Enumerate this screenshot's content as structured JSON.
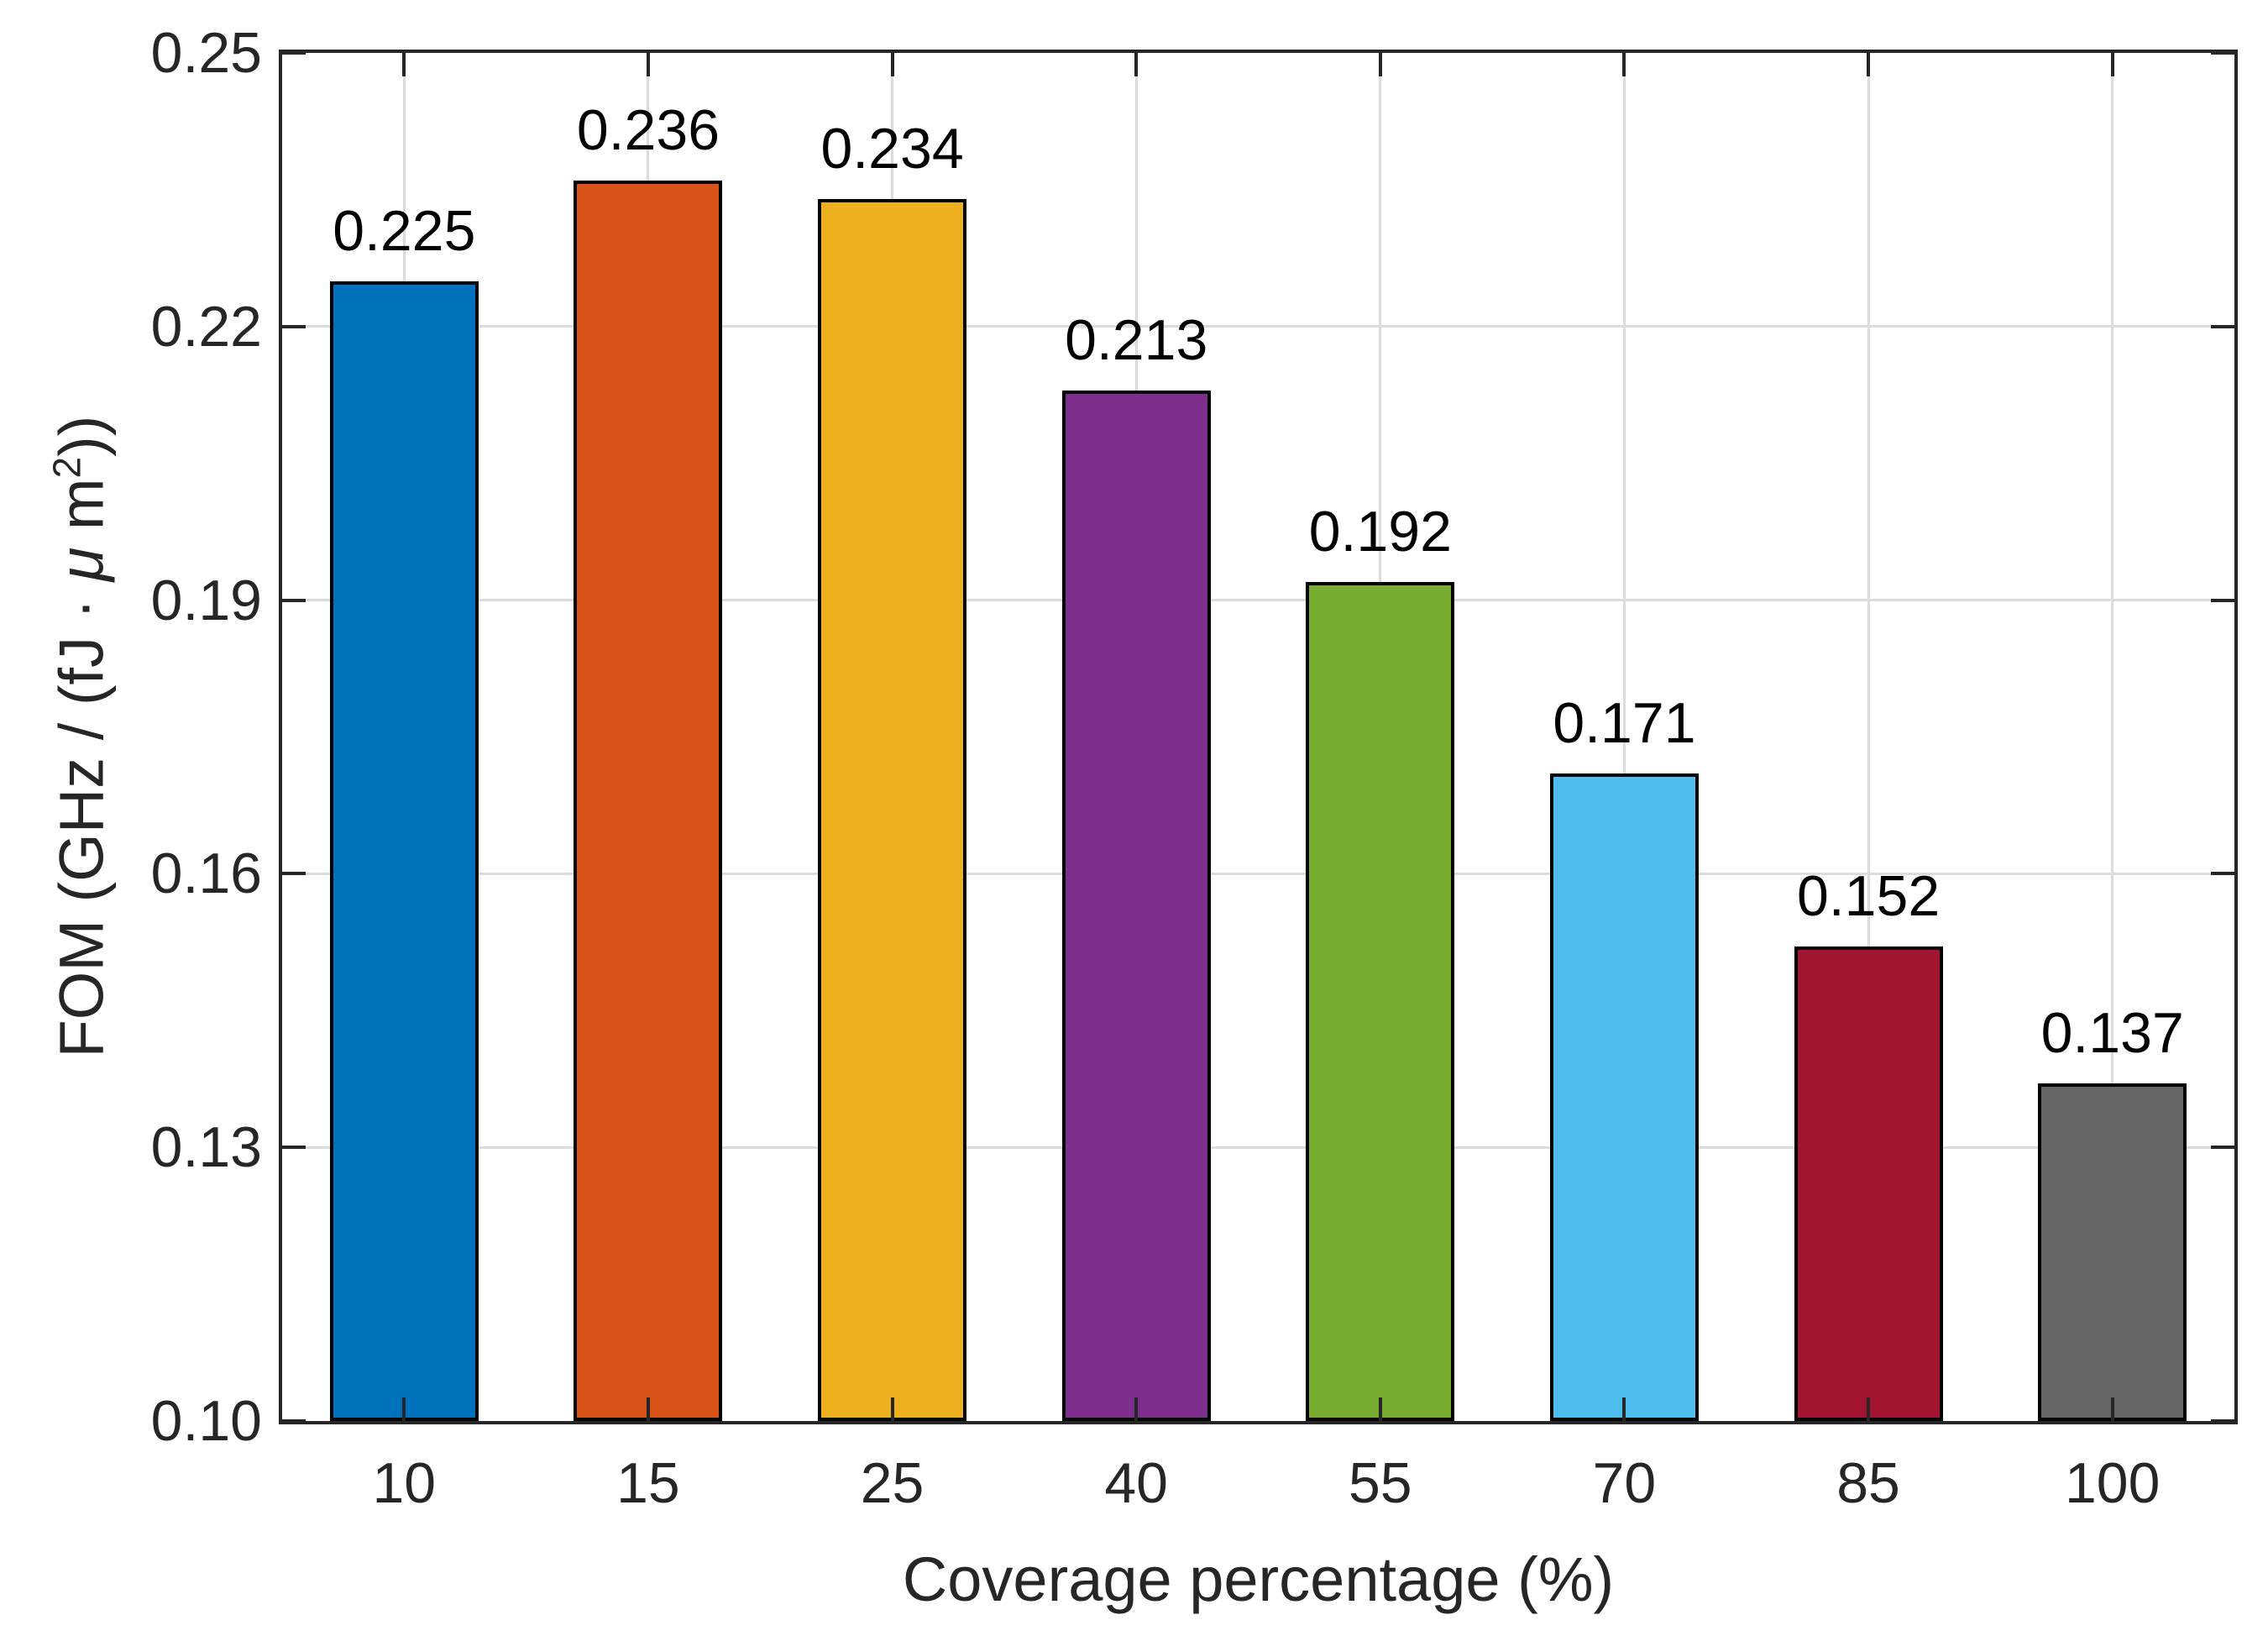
{
  "figure": {
    "background": "#FFFFFF"
  },
  "chart_data": {
    "type": "bar",
    "title": "",
    "xlabel": "Coverage percentage (%)",
    "ylabel": "FOM (GHz / (fJ · μ m²))",
    "ylabel_parts": {
      "pre": "FOM (GHz / (fJ · ",
      "mu": "μ",
      "mid": " m",
      "sup": "2",
      "post": "))"
    },
    "categories": [
      "10",
      "15",
      "25",
      "40",
      "55",
      "70",
      "85",
      "100"
    ],
    "values": [
      0.225,
      0.236,
      0.234,
      0.213,
      0.192,
      0.171,
      0.152,
      0.137
    ],
    "value_labels": [
      "0.225",
      "0.236",
      "0.234",
      "0.213",
      "0.192",
      "0.171",
      "0.152",
      "0.137"
    ],
    "bar_colors": [
      "#0072BD",
      "#D95319",
      "#EDB120",
      "#7E2F8E",
      "#77AC30",
      "#4DBEEE",
      "#A2142F",
      "#666666"
    ],
    "bar_edge_color": "#000000",
    "ylim": [
      0.1,
      0.25
    ],
    "yticks": [
      0.1,
      0.13,
      0.16,
      0.19,
      0.22,
      0.25
    ],
    "ytick_labels": [
      "0.10",
      "0.13",
      "0.16",
      "0.19",
      "0.22",
      "0.25"
    ],
    "grid": true,
    "grid_color": "#DCDCDC",
    "axis_color": "#262626",
    "legend": "none",
    "bar_width_fraction": 0.61,
    "value_labels_shown": true
  }
}
